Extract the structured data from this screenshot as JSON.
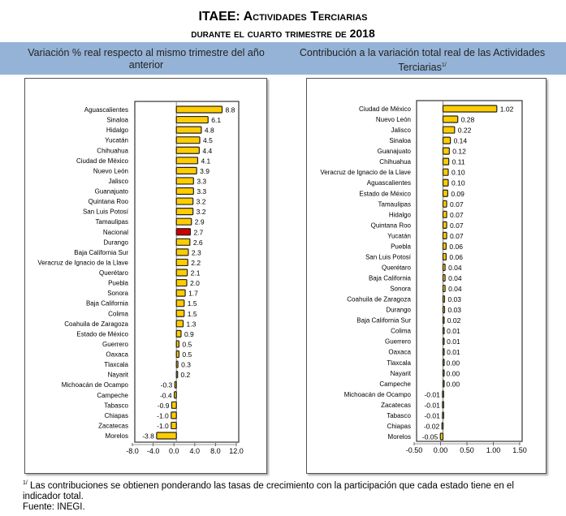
{
  "title": {
    "line1": "ITAEE: Actividades Terciarias",
    "line2": "durante el cuarto trimestre de 2018"
  },
  "headers": {
    "left": "Variación % real respecto al mismo trimestre del año anterior",
    "right": "Contribución a la variación total real de las Actividades Terciarias",
    "right_note_mark": "1/"
  },
  "footnote": {
    "mark": "1/",
    "text": "Las contribuciones se obtienen ponderando las tasas de crecimiento con la participación que cada estado tiene en el indicador total.",
    "source": "Fuente: INEGI."
  },
  "colors": {
    "bar": "#ffcc00",
    "highlight": "#cc0000",
    "band": "#95b3d7"
  },
  "chart_data": [
    {
      "type": "bar",
      "orientation": "horizontal",
      "title": "Variación % real respecto al mismo trimestre del año anterior",
      "categories": [
        "Aguascalientes",
        "Sinaloa",
        "Hidalgo",
        "Yucatán",
        "Chihuahua",
        "Ciudad de México",
        "Nuevo León",
        "Jalisco",
        "Guanajuato",
        "Quintana Roo",
        "San Luis Potosí",
        "Tamaulipas",
        "Nacional",
        "Durango",
        "Baja California Sur",
        "Veracruz de Ignacio de la Llave",
        "Querétaro",
        "Puebla",
        "Sonora",
        "Baja California",
        "Colima",
        "Coahuila de Zaragoza",
        "Estado de México",
        "Guerrero",
        "Oaxaca",
        "Tlaxcala",
        "Nayarit",
        "Michoacán de Ocampo",
        "Campeche",
        "Tabasco",
        "Chiapas",
        "Zacatecas",
        "Morelos"
      ],
      "values": [
        8.8,
        6.1,
        4.8,
        4.5,
        4.4,
        4.1,
        3.9,
        3.3,
        3.3,
        3.2,
        3.2,
        2.9,
        2.7,
        2.6,
        2.3,
        2.2,
        2.1,
        2.0,
        1.7,
        1.5,
        1.5,
        1.3,
        0.9,
        0.5,
        0.5,
        0.3,
        0.2,
        -0.3,
        -0.4,
        -0.9,
        -1.0,
        -1.0,
        -3.8
      ],
      "labels": [
        "8.8",
        "6.1",
        "4.8",
        "4.5",
        "4.4",
        "4.1",
        "3.9",
        "3.3",
        "3.3",
        "3.2",
        "3.2",
        "2.9",
        "2.7",
        "2.6",
        "2.3",
        "2.2",
        "2.1",
        "2.0",
        "1.7",
        "1.5",
        "1.5",
        "1.3",
        "0.9",
        "0.5",
        "0.5",
        "0.3",
        "0.2",
        "-0.3",
        "-0.4",
        "-0.9",
        "-1.0",
        "-1.0",
        "-3.8"
      ],
      "highlight": "Nacional",
      "xlim": [
        -8,
        12
      ],
      "xticks": [
        "-8.0",
        "-4.0",
        "0.0",
        "4.0",
        "8.0",
        "12.0"
      ],
      "xtick_values": [
        -8,
        -4,
        0,
        4,
        8,
        12
      ]
    },
    {
      "type": "bar",
      "orientation": "horizontal",
      "title": "Contribución a la variación total real de las Actividades Terciarias",
      "categories": [
        "Ciudad de México",
        "Nuevo León",
        "Jalisco",
        "Sinaloa",
        "Guanajuato",
        "Chihuahua",
        "Veracruz de Ignacio de la Llave",
        "Aguascalientes",
        "Estado de México",
        "Tamaulipas",
        "Hidalgo",
        "Quintana Roo",
        "Yucatán",
        "Puebla",
        "San Luis Potosí",
        "Querétaro",
        "Baja California",
        "Sonora",
        "Coahuila de Zaragoza",
        "Durango",
        "Baja California Sur",
        "Colima",
        "Guerrero",
        "Oaxaca",
        "Tlaxcala",
        "Nayarit",
        "Campeche",
        "Michoacán de Ocampo",
        "Zacatecas",
        "Tabasco",
        "Chiapas",
        "Morelos"
      ],
      "values": [
        1.02,
        0.28,
        0.22,
        0.14,
        0.12,
        0.11,
        0.1,
        0.1,
        0.09,
        0.07,
        0.07,
        0.07,
        0.07,
        0.06,
        0.06,
        0.04,
        0.04,
        0.04,
        0.03,
        0.03,
        0.02,
        0.01,
        0.01,
        0.01,
        0.0,
        0.0,
        0.0,
        -0.01,
        -0.01,
        -0.01,
        -0.02,
        -0.05
      ],
      "labels": [
        "1.02",
        "0.28",
        "0.22",
        "0.14",
        "0.12",
        "0.11",
        "0.10",
        "0.10",
        "0.09",
        "0.07",
        "0.07",
        "0.07",
        "0.07",
        "0.06",
        "0.06",
        "0.04",
        "0.04",
        "0.04",
        "0.03",
        "0.03",
        "0.02",
        "0.01",
        "0.01",
        "0.01",
        "0.00",
        "0.00",
        "0.00",
        "-0.01",
        "-0.01",
        "-0.01",
        "-0.02",
        "-0.05"
      ],
      "xlim": [
        -0.5,
        1.5
      ],
      "xticks": [
        "-0.50",
        "0.00",
        "0.50",
        "1.00",
        "1.50"
      ],
      "xtick_values": [
        -0.5,
        0,
        0.5,
        1,
        1.5
      ]
    }
  ]
}
